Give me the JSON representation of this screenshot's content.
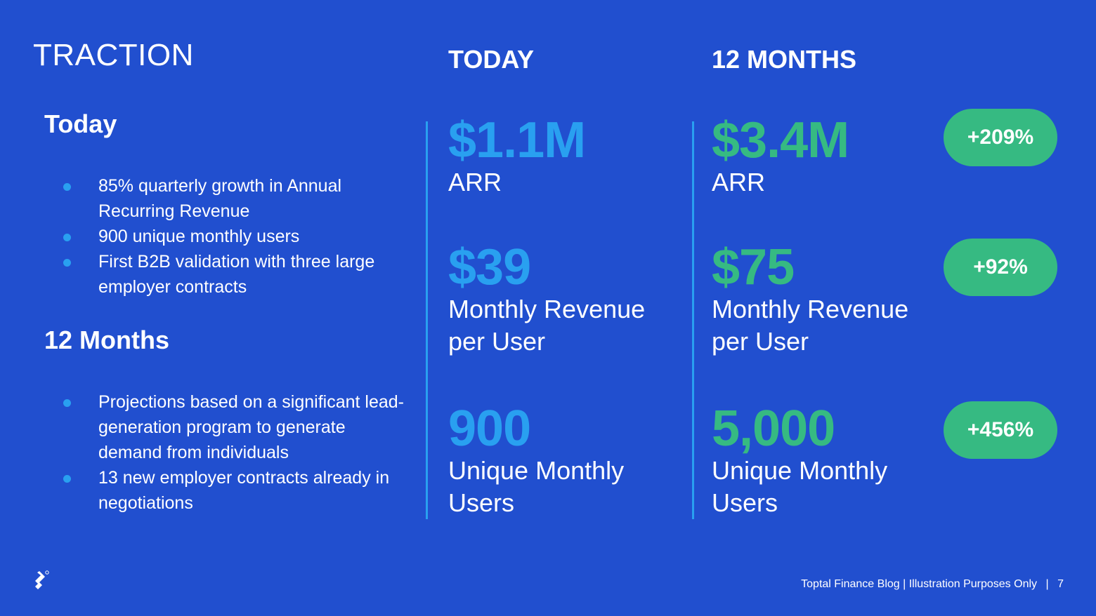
{
  "title": "TRACTION",
  "left": {
    "today": {
      "heading": "Today",
      "bullets": [
        "85% quarterly growth in Annual Recurring Revenue",
        "900 unique monthly users",
        "First B2B validation with three large employer contracts"
      ]
    },
    "months": {
      "heading": "12 Months",
      "bullets": [
        "Projections based on a significant lead-generation program to generate demand from individuals",
        "13 new employer contracts already in negotiations"
      ]
    }
  },
  "columns": {
    "today": {
      "heading": "TODAY",
      "metrics": [
        {
          "value": "$1.1M",
          "label": "ARR"
        },
        {
          "value": "$39",
          "label": "Monthly Revenue per User"
        },
        {
          "value": "900",
          "label": "Unique Monthly Users"
        }
      ]
    },
    "months": {
      "heading": "12 MONTHS",
      "metrics": [
        {
          "value": "$3.4M",
          "label": "ARR",
          "change": "+209%"
        },
        {
          "value": "$75",
          "label": "Monthly Revenue per User",
          "change": "+92%"
        },
        {
          "value": "5,000",
          "label": "Unique Monthly Users",
          "change": "+456%"
        }
      ]
    }
  },
  "footer": {
    "text": "Toptal Finance Blog | Illustration Purposes Only",
    "separator": "|",
    "page_number": "7"
  },
  "colors": {
    "background": "#214fcf",
    "today_accent": "#29a0f0",
    "growth_accent": "#36ba82"
  },
  "icons": {
    "logo": "toptal-logo-icon"
  }
}
